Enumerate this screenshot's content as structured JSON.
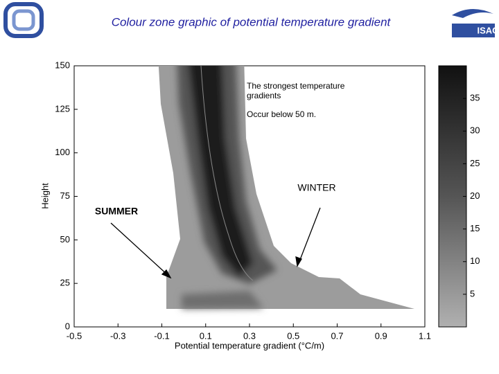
{
  "header": {
    "title": "Colour zone graphic of potential temperature gradient",
    "logo_text": "ISAC"
  },
  "chart_data": {
    "type": "contour",
    "xlabel": "Potential temperature gradient (°C/m)",
    "ylabel": "Height",
    "xlim": [
      -0.5,
      1.1
    ],
    "xticks": [
      -0.5,
      -0.3,
      -0.1,
      0.1,
      0.3,
      0.5,
      0.7,
      0.9,
      1.1
    ],
    "ylim": [
      0,
      150
    ],
    "yticks": [
      0,
      25,
      50,
      75,
      100,
      125,
      150
    ],
    "colorbar": {
      "lim": [
        0,
        40
      ],
      "ticks": [
        5,
        10,
        15,
        20,
        25,
        30,
        35
      ]
    },
    "annotations": [
      "The strongest temperature gradients",
      "Occur below 50 m.",
      "WINTER",
      "SUMMER"
    ]
  }
}
